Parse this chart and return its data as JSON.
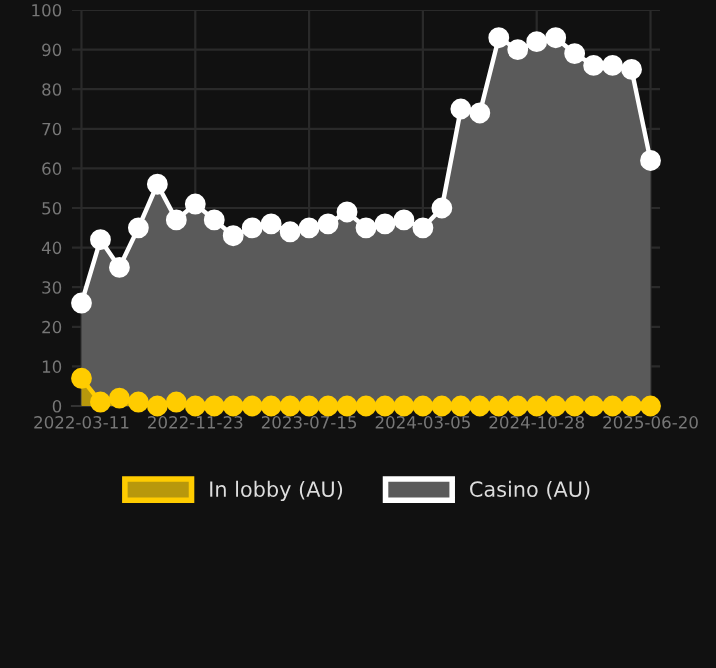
{
  "chart_data": {
    "type": "area",
    "categories": [
      "2022-03-11",
      null,
      null,
      null,
      null,
      null,
      "2022-11-23",
      null,
      null,
      null,
      null,
      null,
      "2023-07-15",
      null,
      null,
      null,
      null,
      null,
      "2024-03-05",
      null,
      null,
      null,
      null,
      null,
      "2024-10-28",
      null,
      null,
      null,
      null,
      null,
      "2025-06-20"
    ],
    "series": [
      {
        "name": "In lobby (AU)",
        "color": "#ffcc00",
        "values": [
          7,
          1,
          2,
          1,
          0,
          1,
          0,
          0,
          0,
          0,
          0,
          0,
          0,
          0,
          0,
          0,
          0,
          0,
          0,
          0,
          0,
          0,
          0,
          0,
          0,
          0,
          0,
          0,
          0,
          0,
          0
        ]
      },
      {
        "name": "Casino (AU)",
        "color": "#ffffff",
        "values": [
          26,
          42,
          35,
          45,
          56,
          47,
          51,
          47,
          43,
          45,
          46,
          44,
          45,
          46,
          49,
          45,
          46,
          47,
          45,
          50,
          75,
          74,
          93,
          90,
          92,
          93,
          89,
          86,
          86,
          85,
          62
        ]
      }
    ],
    "ylim": [
      0,
      100
    ],
    "yticks": [
      0,
      10,
      20,
      30,
      40,
      50,
      60,
      70,
      80,
      90,
      100
    ],
    "grid": true,
    "legend": "bottom",
    "marker": "circle",
    "line_style": "solid"
  }
}
